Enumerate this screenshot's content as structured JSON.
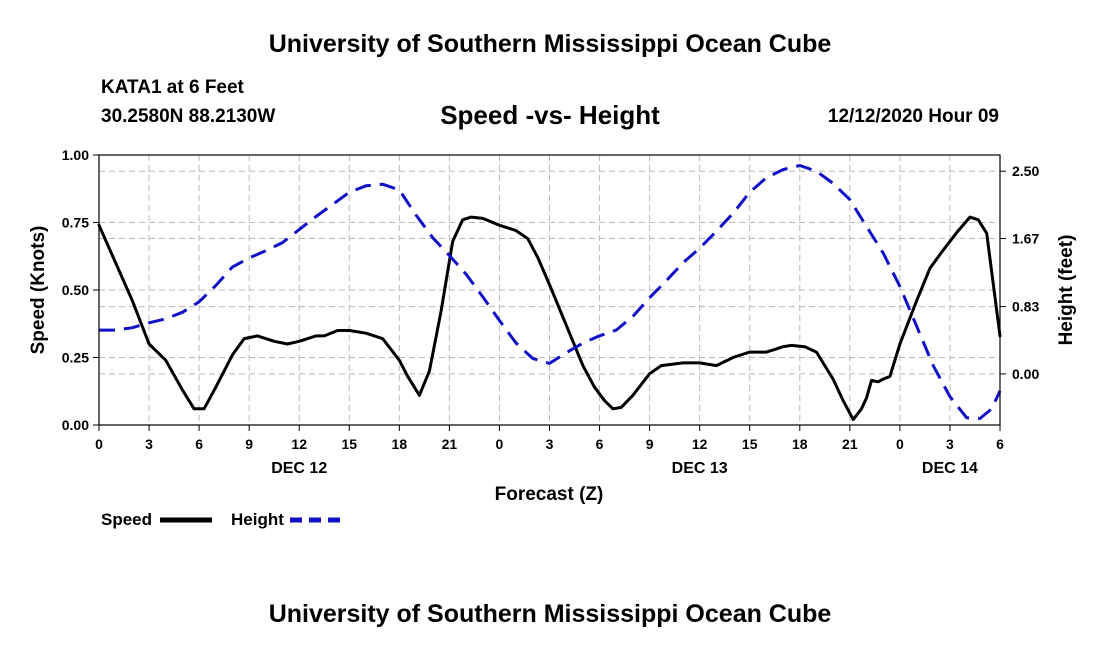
{
  "header": {
    "top_title": "University of Southern Mississippi Ocean Cube",
    "station": "KATA1 at 6 Feet",
    "coords": "30.2580N 88.2130W",
    "run_time": "12/12/2020 Hour 09"
  },
  "footer": {
    "bottom_title": "University of Southern Mississippi Ocean Cube"
  },
  "chart_data": {
    "type": "line",
    "title": "Speed -vs- Height",
    "xlabel": "Forecast (Z)",
    "ylabel_left": "Speed (Knots)",
    "ylabel_right": "Height (feet)",
    "x_unit": "forecast hours from 00Z Dec 12",
    "xlim": [
      0,
      54
    ],
    "x_ticks": [
      {
        "x": 0,
        "label": "0"
      },
      {
        "x": 3,
        "label": "3"
      },
      {
        "x": 6,
        "label": "6"
      },
      {
        "x": 9,
        "label": "9"
      },
      {
        "x": 12,
        "label": "12"
      },
      {
        "x": 15,
        "label": "15"
      },
      {
        "x": 18,
        "label": "18"
      },
      {
        "x": 21,
        "label": "21"
      },
      {
        "x": 24,
        "label": "0"
      },
      {
        "x": 27,
        "label": "3"
      },
      {
        "x": 30,
        "label": "6"
      },
      {
        "x": 33,
        "label": "9"
      },
      {
        "x": 36,
        "label": "12"
      },
      {
        "x": 39,
        "label": "15"
      },
      {
        "x": 42,
        "label": "18"
      },
      {
        "x": 45,
        "label": "21"
      },
      {
        "x": 48,
        "label": "0"
      },
      {
        "x": 51,
        "label": "3"
      },
      {
        "x": 54,
        "label": "6"
      }
    ],
    "date_labels": [
      {
        "x": 12,
        "label": "DEC 12"
      },
      {
        "x": 36,
        "label": "DEC 13"
      },
      {
        "x": 51,
        "label": "DEC 14"
      }
    ],
    "left_axis": {
      "ylim": [
        0,
        1
      ],
      "ticks": [
        {
          "v": 0,
          "label": "0.00"
        },
        {
          "v": 0.25,
          "label": "0.25"
        },
        {
          "v": 0.5,
          "label": "0.50"
        },
        {
          "v": 0.75,
          "label": "0.75"
        },
        {
          "v": 1,
          "label": "1.00"
        }
      ]
    },
    "right_axis": {
      "ylim": [
        -0.63,
        2.7
      ],
      "ticks": [
        {
          "v": 0,
          "label": "0.00"
        },
        {
          "v": 0.83,
          "label": "0.83"
        },
        {
          "v": 1.67,
          "label": "1.67"
        },
        {
          "v": 2.5,
          "label": "2.50"
        }
      ]
    },
    "grid": true,
    "series": [
      {
        "name": "Speed",
        "axis": "left",
        "color": "#000000",
        "style": "solid",
        "points": [
          [
            0,
            0.74
          ],
          [
            1,
            0.6
          ],
          [
            2,
            0.46
          ],
          [
            3,
            0.3
          ],
          [
            4,
            0.24
          ],
          [
            5,
            0.13
          ],
          [
            5.7,
            0.06
          ],
          [
            6.3,
            0.06
          ],
          [
            7,
            0.14
          ],
          [
            8,
            0.26
          ],
          [
            8.7,
            0.32
          ],
          [
            9.5,
            0.33
          ],
          [
            10.5,
            0.31
          ],
          [
            11.3,
            0.3
          ],
          [
            12,
            0.31
          ],
          [
            13,
            0.33
          ],
          [
            13.5,
            0.33
          ],
          [
            14.3,
            0.35
          ],
          [
            15,
            0.35
          ],
          [
            16,
            0.34
          ],
          [
            17,
            0.32
          ],
          [
            18,
            0.24
          ],
          [
            18.5,
            0.18
          ],
          [
            19.2,
            0.11
          ],
          [
            19.8,
            0.2
          ],
          [
            20.5,
            0.42
          ],
          [
            21.2,
            0.68
          ],
          [
            21.8,
            0.76
          ],
          [
            22.3,
            0.77
          ],
          [
            23,
            0.765
          ],
          [
            24,
            0.74
          ],
          [
            25,
            0.72
          ],
          [
            25.7,
            0.69
          ],
          [
            26.3,
            0.62
          ],
          [
            27,
            0.52
          ],
          [
            28,
            0.37
          ],
          [
            29,
            0.22
          ],
          [
            29.7,
            0.14
          ],
          [
            30.3,
            0.09
          ],
          [
            30.8,
            0.06
          ],
          [
            31.3,
            0.065
          ],
          [
            32,
            0.11
          ],
          [
            33,
            0.19
          ],
          [
            33.7,
            0.22
          ],
          [
            35,
            0.23
          ],
          [
            36,
            0.23
          ],
          [
            37,
            0.22
          ],
          [
            38,
            0.25
          ],
          [
            39,
            0.27
          ],
          [
            40,
            0.27
          ],
          [
            40.5,
            0.28
          ],
          [
            41,
            0.29
          ],
          [
            41.5,
            0.295
          ],
          [
            42.3,
            0.29
          ],
          [
            43,
            0.27
          ],
          [
            44,
            0.17
          ],
          [
            44.6,
            0.09
          ],
          [
            45.2,
            0.02
          ],
          [
            45.7,
            0.06
          ],
          [
            46,
            0.1
          ],
          [
            46.3,
            0.165
          ],
          [
            46.7,
            0.16
          ],
          [
            47,
            0.17
          ],
          [
            47.4,
            0.18
          ],
          [
            48,
            0.3
          ],
          [
            49,
            0.46
          ],
          [
            49.8,
            0.58
          ],
          [
            50.5,
            0.64
          ],
          [
            51.5,
            0.72
          ],
          [
            52.2,
            0.77
          ],
          [
            52.7,
            0.76
          ],
          [
            53.2,
            0.71
          ],
          [
            54,
            0.33
          ]
        ]
      },
      {
        "name": "Height",
        "axis": "right",
        "color": "#1010c8",
        "style": "dashed",
        "points": [
          [
            0,
            0.54
          ],
          [
            1,
            0.54
          ],
          [
            2,
            0.57
          ],
          [
            3,
            0.63
          ],
          [
            4,
            0.68
          ],
          [
            5,
            0.76
          ],
          [
            6,
            0.89
          ],
          [
            7,
            1.09
          ],
          [
            8,
            1.32
          ],
          [
            9,
            1.43
          ],
          [
            10,
            1.52
          ],
          [
            11,
            1.62
          ],
          [
            12,
            1.78
          ],
          [
            13,
            1.94
          ],
          [
            14,
            2.09
          ],
          [
            15,
            2.24
          ],
          [
            16,
            2.32
          ],
          [
            17,
            2.34
          ],
          [
            18,
            2.27
          ],
          [
            19,
            1.96
          ],
          [
            20,
            1.68
          ],
          [
            21,
            1.46
          ],
          [
            22,
            1.23
          ],
          [
            23,
            0.95
          ],
          [
            24,
            0.66
          ],
          [
            25,
            0.38
          ],
          [
            26,
            0.19
          ],
          [
            27,
            0.13
          ],
          [
            28,
            0.26
          ],
          [
            29,
            0.38
          ],
          [
            30,
            0.47
          ],
          [
            31,
            0.54
          ],
          [
            32,
            0.71
          ],
          [
            33,
            0.94
          ],
          [
            34,
            1.15
          ],
          [
            35,
            1.37
          ],
          [
            36,
            1.55
          ],
          [
            37,
            1.76
          ],
          [
            38,
            1.98
          ],
          [
            39,
            2.24
          ],
          [
            40,
            2.42
          ],
          [
            41,
            2.52
          ],
          [
            42,
            2.57
          ],
          [
            43,
            2.5
          ],
          [
            44,
            2.35
          ],
          [
            45,
            2.15
          ],
          [
            46,
            1.82
          ],
          [
            47,
            1.49
          ],
          [
            48,
            1.08
          ],
          [
            49,
            0.59
          ],
          [
            50,
            0.1
          ],
          [
            51,
            -0.28
          ],
          [
            52,
            -0.54
          ],
          [
            52.8,
            -0.55
          ],
          [
            53.5,
            -0.43
          ],
          [
            54,
            -0.21
          ]
        ]
      }
    ],
    "legend": {
      "placement": "bottom-left",
      "entries": [
        {
          "label": "Speed",
          "color": "#000000",
          "style": "solid"
        },
        {
          "label": "Height",
          "color": "#1010c8",
          "style": "dashed"
        }
      ]
    }
  }
}
